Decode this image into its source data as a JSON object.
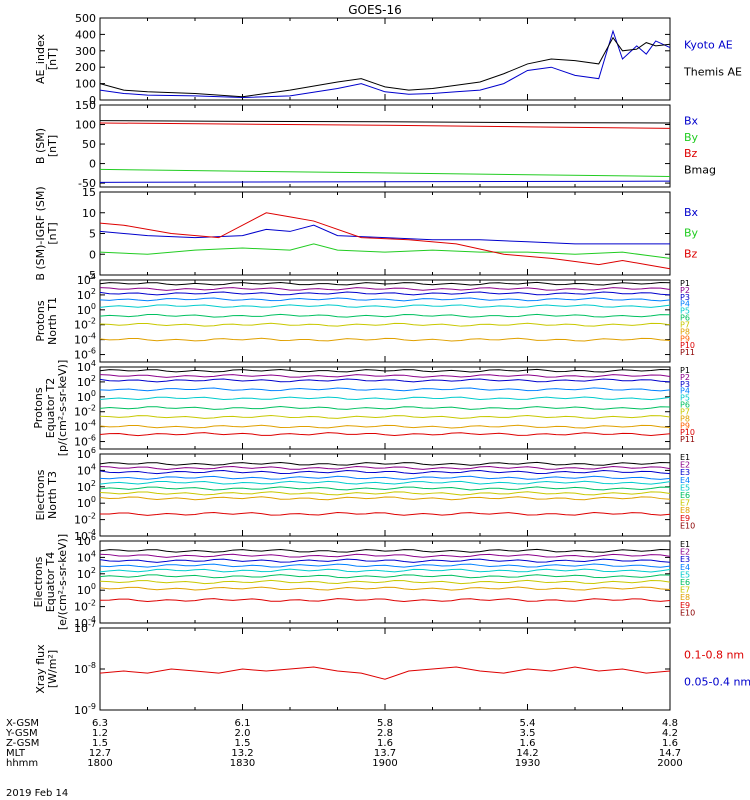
{
  "title": "GOES-16",
  "date_label": "2019 Feb 14",
  "colors": {
    "black": "#000000",
    "blue": "#0000cc",
    "green": "#22cc22",
    "red": "#dd0000",
    "P1": "#000000",
    "P2": "#8b008b",
    "P3": "#0000cc",
    "P4": "#0080ff",
    "P5": "#00cccc",
    "P6": "#00c060",
    "P7": "#c8c800",
    "P8": "#e0a000",
    "P9": "#ff6000",
    "P10": "#dd0000",
    "P11": "#8b0000"
  },
  "orbit": {
    "rows": [
      {
        "label": "X-GSM",
        "values": [
          "6.3",
          "6.1",
          "5.8",
          "5.4",
          "4.8"
        ]
      },
      {
        "label": "Y-GSM",
        "values": [
          "1.2",
          "2.0",
          "2.8",
          "3.5",
          "4.2"
        ]
      },
      {
        "label": "Z-GSM",
        "values": [
          "1.5",
          "1.5",
          "1.6",
          "1.6",
          "1.6"
        ]
      },
      {
        "label": "MLT",
        "values": [
          "12.7",
          "13.2",
          "13.7",
          "14.2",
          "14.7"
        ]
      },
      {
        "label": "hhmm",
        "values": [
          "1800",
          "1830",
          "1900",
          "1930",
          "2000"
        ]
      }
    ]
  },
  "chart_data": [
    {
      "type": "line",
      "ylabel": [
        "AE_index",
        "[nT]"
      ],
      "ylim": [
        0,
        500
      ],
      "yticks": [
        "0",
        "100",
        "200",
        "300",
        "400",
        "500"
      ],
      "x_range_min": [
        0,
        120
      ],
      "series": [
        {
          "name": "Kyoto AE",
          "color": "#0000cc",
          "x": [
            0,
            5,
            10,
            20,
            30,
            40,
            50,
            55,
            60,
            65,
            70,
            75,
            80,
            85,
            90,
            95,
            100,
            105,
            108,
            110,
            113,
            115,
            117,
            120
          ],
          "y": [
            60,
            40,
            30,
            25,
            15,
            25,
            70,
            100,
            50,
            35,
            40,
            50,
            60,
            100,
            180,
            200,
            150,
            130,
            420,
            250,
            330,
            280,
            360,
            320
          ]
        },
        {
          "name": "Themis AE",
          "color": "#000000",
          "x": [
            0,
            5,
            10,
            20,
            30,
            40,
            50,
            55,
            60,
            65,
            70,
            75,
            80,
            85,
            90,
            95,
            100,
            105,
            108,
            110,
            113,
            115,
            117,
            120
          ],
          "y": [
            100,
            60,
            50,
            40,
            20,
            60,
            110,
            130,
            80,
            60,
            70,
            90,
            110,
            160,
            220,
            250,
            240,
            220,
            380,
            300,
            310,
            350,
            330,
            340
          ]
        }
      ]
    },
    {
      "type": "line",
      "ylabel": [
        "B (SM)",
        "[nT]"
      ],
      "ylim": [
        -60,
        150
      ],
      "yticks": [
        "-50",
        "0",
        "50",
        "100",
        "150"
      ],
      "series": [
        {
          "name": "Bx",
          "color": "#0000cc",
          "x": [
            0,
            120
          ],
          "y": [
            -48,
            -45
          ]
        },
        {
          "name": "By",
          "color": "#22cc22",
          "x": [
            0,
            120
          ],
          "y": [
            -15,
            -33
          ]
        },
        {
          "name": "Bz",
          "color": "#dd0000",
          "x": [
            0,
            30,
            60,
            90,
            120
          ],
          "y": [
            104,
            101,
            98,
            94,
            90
          ]
        },
        {
          "name": "Bmag",
          "color": "#000000",
          "x": [
            0,
            30,
            60,
            90,
            120
          ],
          "y": [
            110,
            108,
            107,
            105,
            104
          ]
        }
      ]
    },
    {
      "type": "line",
      "ylabel": [
        "B (SM)-IGRF (SM)",
        "[nT]"
      ],
      "ylim": [
        -5,
        15
      ],
      "yticks": [
        "-5",
        "0",
        "5",
        "10",
        "15"
      ],
      "series": [
        {
          "name": "Bx",
          "color": "#0000cc",
          "x": [
            0,
            10,
            20,
            30,
            35,
            40,
            45,
            50,
            60,
            70,
            80,
            90,
            100,
            110,
            120
          ],
          "y": [
            5.5,
            4.5,
            4.0,
            4.5,
            6.0,
            5.5,
            7.0,
            4.5,
            4.0,
            3.5,
            3.5,
            3.0,
            2.5,
            2.5,
            2.5
          ]
        },
        {
          "name": "By",
          "color": "#22cc22",
          "x": [
            0,
            10,
            20,
            30,
            40,
            45,
            50,
            60,
            70,
            80,
            90,
            100,
            110,
            120
          ],
          "y": [
            0.5,
            0.0,
            1.0,
            1.5,
            1.0,
            2.5,
            1.0,
            0.5,
            1.0,
            0.5,
            0.5,
            0.0,
            0.5,
            -1.0
          ]
        },
        {
          "name": "Bz",
          "color": "#dd0000",
          "x": [
            0,
            5,
            15,
            25,
            35,
            40,
            45,
            55,
            65,
            75,
            85,
            95,
            105,
            110,
            115,
            120
          ],
          "y": [
            7.5,
            7.0,
            5.0,
            4.0,
            10.0,
            9.0,
            8.0,
            4.0,
            3.5,
            2.5,
            0.0,
            -1.0,
            -2.5,
            -1.5,
            -2.5,
            -3.5
          ]
        }
      ]
    },
    {
      "type": "line",
      "log": true,
      "ylabel": [
        "Protons",
        "North T1"
      ],
      "ytick_exps": [
        4,
        2,
        0,
        -2,
        -4,
        -6
      ],
      "ylim_exp": [
        -7,
        4
      ],
      "series": [
        {
          "name": "P1",
          "color": "#000000",
          "y": 3.5
        },
        {
          "name": "P2",
          "color": "#8b008b",
          "y": 2.8
        },
        {
          "name": "P3",
          "color": "#0000cc",
          "y": 2.2
        },
        {
          "name": "P4",
          "color": "#0080ff",
          "y": 1.4
        },
        {
          "name": "P5",
          "color": "#00cccc",
          "y": 0.5
        },
        {
          "name": "P6",
          "color": "#00c060",
          "y": -0.8
        },
        {
          "name": "P7",
          "color": "#c8c800",
          "y": -2.0
        },
        {
          "name": "P8",
          "color": "#e0a000",
          "y": -4.0
        },
        {
          "name": "P9",
          "color": "#ff6000"
        },
        {
          "name": "P10",
          "color": "#dd0000"
        },
        {
          "name": "P11",
          "color": "#8b0000"
        }
      ]
    },
    {
      "type": "line",
      "log": true,
      "ylabel": [
        "Protons",
        "Equator T2",
        "[p/(cm²-s-sr-keV)]"
      ],
      "ytick_exps": [
        4,
        2,
        0,
        -2,
        -4,
        -6
      ],
      "ylim_exp": [
        -7,
        4
      ],
      "series": [
        {
          "name": "P1",
          "color": "#000000",
          "y": 3.5
        },
        {
          "name": "P2",
          "color": "#8b008b",
          "y": 2.8
        },
        {
          "name": "P3",
          "color": "#0000cc",
          "y": 2.2
        },
        {
          "name": "P4",
          "color": "#0080ff",
          "y": 1.0
        },
        {
          "name": "P5",
          "color": "#00cccc",
          "y": -0.2
        },
        {
          "name": "P6",
          "color": "#00c060",
          "y": -1.5
        },
        {
          "name": "P7",
          "color": "#c8c800",
          "y": -2.7
        },
        {
          "name": "P8",
          "color": "#e0a000",
          "y": -4.0
        },
        {
          "name": "P9",
          "color": "#ff6000"
        },
        {
          "name": "P10",
          "color": "#dd0000",
          "y": -5.0
        },
        {
          "name": "P11",
          "color": "#8b0000"
        }
      ]
    },
    {
      "type": "line",
      "log": true,
      "ylabel": [
        "Electrons",
        "North T3"
      ],
      "ytick_exps": [
        6,
        4,
        2,
        0,
        -2,
        -4
      ],
      "ylim_exp": [
        -4,
        6
      ],
      "series": [
        {
          "name": "E1",
          "color": "#000000",
          "y": 4.8
        },
        {
          "name": "E2",
          "color": "#8b008b",
          "y": 4.3
        },
        {
          "name": "E3",
          "color": "#0000cc",
          "y": 3.8
        },
        {
          "name": "E4",
          "color": "#0080ff",
          "y": 3.1
        },
        {
          "name": "E5",
          "color": "#00cccc",
          "y": 2.5
        },
        {
          "name": "E6",
          "color": "#00c060",
          "y": 1.8
        },
        {
          "name": "E7",
          "color": "#c8c800",
          "y": 1.2
        },
        {
          "name": "E8",
          "color": "#e0a000",
          "y": 0.6
        },
        {
          "name": "E9",
          "color": "#dd0000",
          "y": -1.3
        },
        {
          "name": "E10",
          "color": "#8b0000"
        }
      ]
    },
    {
      "type": "line",
      "log": true,
      "ylabel": [
        "Electrons",
        "Equator T4",
        "[e/(cm²-s-sr-keV)]"
      ],
      "ytick_exps": [
        6,
        4,
        2,
        0,
        -2,
        -4
      ],
      "ylim_exp": [
        -4,
        6
      ],
      "series": [
        {
          "name": "E1",
          "color": "#000000",
          "y": 4.8
        },
        {
          "name": "E2",
          "color": "#8b008b",
          "y": 4.2
        },
        {
          "name": "E3",
          "color": "#0000cc",
          "y": 3.6
        },
        {
          "name": "E4",
          "color": "#0080ff",
          "y": 3.0
        },
        {
          "name": "E5",
          "color": "#00cccc",
          "y": 2.4
        },
        {
          "name": "E6",
          "color": "#00c060",
          "y": 1.7
        },
        {
          "name": "E7",
          "color": "#c8c800",
          "y": 1.0
        },
        {
          "name": "E8",
          "color": "#e0a000",
          "y": 0.2
        },
        {
          "name": "E9",
          "color": "#dd0000",
          "y": -1.2
        },
        {
          "name": "E10",
          "color": "#8b0000"
        }
      ]
    },
    {
      "type": "line",
      "log": true,
      "ylabel": [
        "Xray flux",
        "[W/m²]"
      ],
      "ytick_exps": [
        -7,
        -8,
        -9
      ],
      "ylim_exp": [
        -9,
        -7
      ],
      "series": [
        {
          "name": "0.1-0.8 nm",
          "color": "#dd0000",
          "x": [
            0,
            5,
            10,
            15,
            20,
            25,
            30,
            35,
            40,
            45,
            50,
            55,
            60,
            65,
            70,
            75,
            80,
            85,
            90,
            95,
            100,
            105,
            110,
            115,
            120
          ],
          "y": [
            -8.1,
            -8.05,
            -8.1,
            -8.0,
            -8.05,
            -8.1,
            -8.0,
            -8.05,
            -8.0,
            -7.95,
            -8.05,
            -8.1,
            -8.25,
            -8.05,
            -8.0,
            -7.95,
            -8.05,
            -8.1,
            -8.0,
            -8.05,
            -7.95,
            -8.05,
            -8.0,
            -8.1,
            -8.05
          ]
        },
        {
          "name": "0.05-0.4 nm",
          "color": "#0000cc"
        }
      ]
    }
  ]
}
